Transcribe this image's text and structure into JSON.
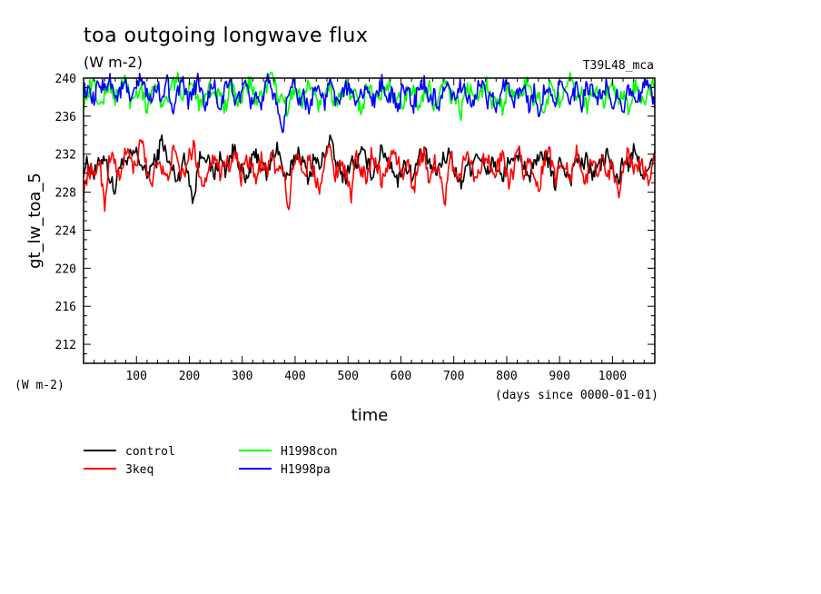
{
  "chart_data": {
    "type": "line",
    "title": "toa outgoing longwave flux",
    "units": "(W m-2)",
    "run_label": "T39L48_mca",
    "ylabel": "gt_lw_toa_5",
    "y_units_corner": "(W m-2)",
    "xlabel": "time",
    "x_units": "(days since 0000-01-01)",
    "xlim": [
      0,
      1080
    ],
    "ylim": [
      210,
      240
    ],
    "x_ticks": [
      100,
      200,
      300,
      400,
      500,
      600,
      700,
      800,
      900,
      1000
    ],
    "y_ticks": [
      212,
      216,
      220,
      224,
      228,
      232,
      236,
      240
    ],
    "x_tick_labels": [
      "100",
      "200",
      "300",
      "400",
      "500",
      "600",
      "700",
      "800",
      "900",
      "1000"
    ],
    "y_tick_labels": [
      "212",
      "216",
      "220",
      "224",
      "228",
      "232",
      "236",
      "240"
    ],
    "grid": false,
    "legend_position": "bottom-left",
    "series": [
      {
        "name": "control",
        "color": "#000000",
        "approx_mean": 231.0,
        "approx_min": 226.0,
        "approx_max": 234.0,
        "values": [
          230.5,
          231.2,
          229.8,
          231.0,
          232.0,
          229.5,
          228.0,
          231.4,
          230.6,
          231.8,
          232.2,
          231.0,
          229.6,
          230.8,
          231.5,
          233.8,
          231.2,
          230.4,
          229.2,
          231.6,
          230.0,
          227.0,
          231.3,
          232.4,
          230.8,
          229.9,
          231.7,
          230.2,
          231.9,
          232.5,
          230.5,
          228.8,
          231.0,
          232.1,
          230.7,
          229.8,
          231.6,
          233.0,
          230.2,
          229.1,
          231.4,
          232.3,
          230.9,
          229.4,
          231.8,
          230.5,
          232.0,
          233.9,
          231.2,
          230.1,
          229.6,
          231.3,
          230.8,
          232.2,
          231.4,
          229.9,
          231.0,
          232.6,
          231.5,
          230.7,
          228.9,
          231.2,
          230.4,
          229.6,
          231.8,
          232.0,
          231.1,
          229.7,
          230.9,
          231.6,
          232.3,
          230.0,
          228.6,
          231.1,
          230.5,
          232.4,
          231.2,
          229.8,
          231.5,
          230.3,
          229.1,
          231.7,
          230.6,
          232.1,
          231.0,
          229.5,
          230.8,
          231.3,
          232.2,
          230.4,
          228.8,
          231.6,
          230.1,
          229.4,
          231.9,
          230.7,
          231.4,
          229.9,
          230.6,
          231.2,
          232.0,
          230.3,
          229.0,
          231.5,
          230.8,
          232.3,
          231.1,
          229.6,
          230.4,
          231.7
        ]
      },
      {
        "name": "3keq",
        "color": "#ff0000",
        "approx_mean": 230.5,
        "approx_min": 226.0,
        "approx_max": 234.5,
        "values": [
          228.0,
          230.5,
          229.4,
          231.8,
          226.5,
          232.0,
          231.2,
          229.0,
          232.6,
          231.4,
          230.0,
          234.2,
          230.5,
          228.8,
          231.9,
          230.2,
          229.1,
          232.4,
          231.0,
          229.6,
          231.5,
          232.8,
          230.3,
          228.5,
          231.1,
          232.0,
          229.9,
          231.6,
          230.4,
          232.5,
          229.2,
          231.3,
          230.7,
          228.9,
          231.8,
          230.1,
          232.3,
          229.5,
          231.0,
          226.0,
          230.8,
          232.2,
          229.7,
          231.4,
          230.0,
          228.4,
          231.7,
          232.6,
          229.8,
          231.2,
          230.5,
          227.2,
          231.9,
          230.3,
          229.4,
          232.1,
          231.0,
          229.0,
          230.6,
          232.4,
          231.3,
          229.6,
          230.9,
          228.2,
          231.5,
          232.0,
          229.3,
          231.1,
          230.4,
          226.8,
          231.8,
          230.2,
          229.7,
          232.5,
          230.8,
          229.1,
          231.4,
          232.2,
          229.5,
          230.6,
          231.9,
          228.7,
          230.3,
          232.7,
          229.8,
          231.2,
          230.0,
          228.6,
          231.6,
          232.1,
          229.4,
          230.9,
          231.3,
          229.2,
          232.4,
          230.5,
          228.9,
          231.7,
          230.1,
          232.0,
          229.6,
          231.0,
          227.5,
          230.7,
          232.3,
          229.9,
          231.4,
          230.2,
          228.8,
          231.8
        ]
      },
      {
        "name": "H1998con",
        "color": "#00ff00",
        "approx_mean": 238.0,
        "approx_min": 235.5,
        "approx_max": 240.6,
        "values": [
          237.5,
          238.8,
          239.6,
          236.9,
          238.2,
          239.4,
          237.8,
          238.9,
          240.1,
          237.3,
          238.6,
          239.2,
          237.0,
          238.4,
          239.8,
          236.5,
          238.1,
          239.0,
          240.3,
          237.6,
          238.7,
          239.5,
          237.2,
          238.3,
          239.1,
          237.9,
          238.5,
          236.7,
          239.3,
          238.0,
          237.4,
          238.9,
          239.7,
          237.1,
          238.6,
          239.2,
          240.6,
          237.8,
          238.2,
          236.3,
          239.0,
          238.4,
          237.5,
          239.6,
          238.1,
          237.0,
          238.8,
          239.4,
          236.9,
          238.3,
          239.1,
          237.6,
          238.7,
          236.0,
          239.2,
          238.5,
          237.3,
          238.9,
          239.8,
          237.7,
          238.0,
          236.8,
          239.4,
          238.6,
          237.2,
          238.3,
          239.0,
          236.5,
          238.7,
          239.5,
          237.9,
          238.2,
          236.1,
          239.1,
          238.4,
          237.4,
          238.8,
          239.6,
          237.0,
          238.1,
          236.7,
          239.3,
          238.5,
          237.6,
          238.9,
          239.7,
          237.1,
          238.0,
          236.4,
          239.2,
          238.6,
          237.5,
          238.3,
          239.9,
          237.8,
          238.7,
          236.9,
          239.0,
          238.2,
          237.3,
          238.5,
          239.4,
          237.7,
          238.1,
          236.6,
          239.1,
          238.8,
          237.2,
          238.4,
          239.5
        ]
      },
      {
        "name": "H1998pa",
        "color": "#0000ff",
        "approx_mean": 238.2,
        "approx_min": 233.5,
        "approx_max": 240.5,
        "values": [
          239.0,
          238.2,
          237.5,
          239.6,
          238.8,
          240.3,
          237.9,
          238.6,
          239.4,
          237.2,
          238.9,
          240.1,
          238.3,
          237.6,
          239.2,
          238.0,
          239.7,
          236.8,
          238.5,
          239.3,
          237.4,
          238.7,
          239.9,
          237.0,
          238.4,
          239.1,
          236.5,
          238.8,
          239.5,
          237.7,
          238.2,
          239.0,
          237.3,
          238.6,
          236.9,
          239.8,
          238.1,
          237.5,
          233.6,
          238.9,
          239.4,
          237.8,
          238.3,
          236.4,
          239.1,
          238.7,
          237.2,
          239.6,
          238.0,
          237.6,
          238.8,
          239.3,
          236.7,
          238.5,
          239.0,
          237.4,
          238.2,
          239.7,
          237.9,
          238.4,
          236.2,
          239.2,
          238.6,
          237.1,
          238.9,
          239.5,
          237.6,
          238.1,
          236.8,
          239.0,
          238.3,
          237.5,
          239.4,
          238.7,
          237.0,
          238.5,
          239.8,
          237.3,
          238.0,
          236.6,
          239.3,
          238.8,
          237.7,
          238.2,
          239.6,
          237.1,
          238.6,
          236.3,
          239.1,
          238.4,
          237.8,
          239.7,
          238.1,
          237.4,
          238.9,
          236.9,
          239.2,
          238.5,
          237.6,
          238.3,
          239.4,
          237.2,
          238.7,
          236.5,
          239.0,
          238.2,
          237.9,
          239.5,
          238.6,
          237.3
        ]
      }
    ]
  }
}
